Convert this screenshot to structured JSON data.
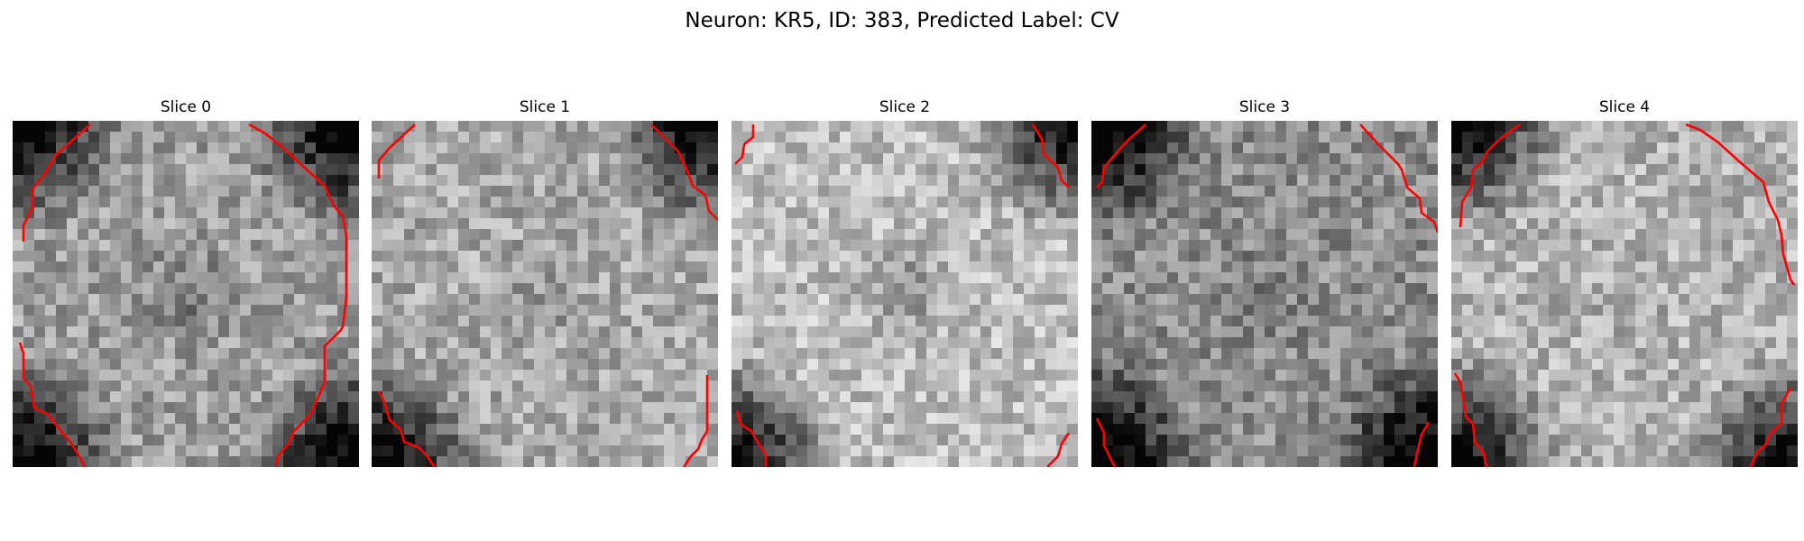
{
  "figure": {
    "title": "Neuron: KR5, ID: 383, Predicted Label: CV"
  },
  "panels": [
    {
      "title": "Slice 0",
      "seed": 11,
      "base": 0.62,
      "darkCorners": [
        "tl",
        "tr",
        "bl",
        "br"
      ],
      "centerDark": 0.18
    },
    {
      "title": "Slice 1",
      "seed": 23,
      "base": 0.66,
      "darkCorners": [
        "tr",
        "bl"
      ],
      "centerDark": 0.1
    },
    {
      "title": "Slice 2",
      "seed": 37,
      "base": 0.74,
      "darkCorners": [
        "tr",
        "bl"
      ],
      "centerDark": 0.22
    },
    {
      "title": "Slice 3",
      "seed": 41,
      "base": 0.55,
      "darkCorners": [
        "tl",
        "bl",
        "br"
      ],
      "centerDark": 0.08
    },
    {
      "title": "Slice 4",
      "seed": 53,
      "base": 0.7,
      "darkCorners": [
        "tl",
        "bl",
        "br"
      ],
      "centerDark": 0.05
    }
  ],
  "contour_color": "#ff0000"
}
